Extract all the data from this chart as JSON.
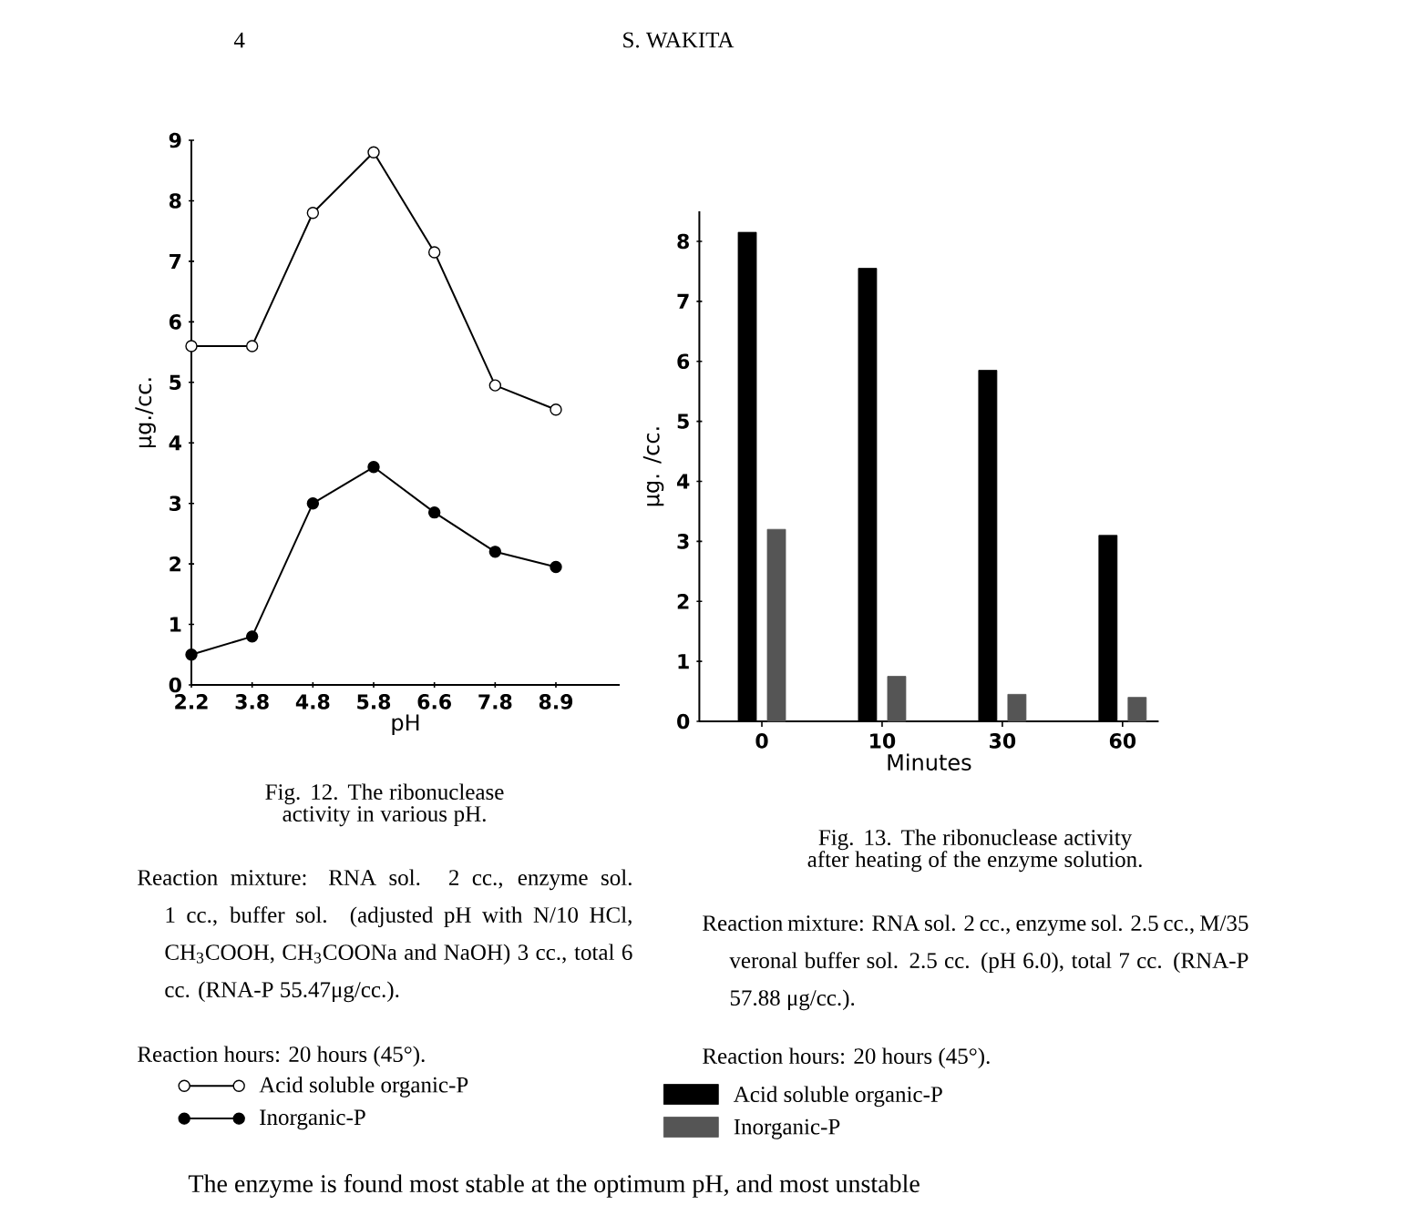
{
  "chart_data": [
    {
      "type": "line",
      "title": "Fig. 12.  The ribonuclease activity in various pH.",
      "xlabel": "pH",
      "ylabel": "μg./cc.",
      "categories": [
        "2.2",
        "3.8",
        "4.8",
        "5.8",
        "6.6",
        "7.8",
        "8.9"
      ],
      "series": [
        {
          "name": "Acid soluble organic-P",
          "color": "#000000",
          "values": [
            5.6,
            5.6,
            7.8,
            8.8,
            7.15,
            4.95,
            4.55
          ]
        },
        {
          "name": "Inorganic-P",
          "color": "#000000",
          "values": [
            0.5,
            0.8,
            3.0,
            3.6,
            2.85,
            2.2,
            1.95
          ]
        }
      ],
      "ylim": [
        0,
        9
      ],
      "yticks": [
        0,
        1,
        2,
        3,
        4,
        5,
        6,
        7,
        8,
        9
      ],
      "marker": "circle",
      "legend": "bottom",
      "annotations": [
        "4",
        "S. WAKITA",
        "Reaction mixture: RNA sol. 2 cc., enzyme sol. 1 cc., buffer sol. (adjusted pH with N/10 HCl, CH$_{3}$COOH, CH$_{3}$COONa and NaOH) 3 cc., total 6 cc. (RNA-P 55.47μg/cc.).",
        "Reaction hours: 20 hours (45°)."
      ]
    },
    {
      "type": "bar",
      "title": "Fig. 13.  The ribonuclease activity after heating of the enzyme solution.",
      "xlabel": "Minutes",
      "ylabel": "μg. /cc.",
      "categories": [
        "0",
        "10",
        "30",
        "60"
      ],
      "series": [
        {
          "name": "Acid soluble organic-P",
          "color": "#000000",
          "values": [
            8.15,
            7.55,
            5.85,
            3.1
          ]
        },
        {
          "name": "Inorganic-P",
          "color": "#555555",
          "values": [
            3.2,
            0.75,
            0.45,
            0.4
          ]
        }
      ],
      "ylim": [
        0,
        8.5
      ],
      "yticks": [
        0,
        1,
        2,
        3,
        4,
        5,
        6,
        7,
        8
      ],
      "legend": "bottom",
      "annotations": [
        "Reaction mixture: RNA sol. 2 cc., enzyme sol. 2.5 cc., M/35 veronal buffer sol. 2.5 cc. (pH 6.0), total 7 cc. (RNA-P 57.88 μg/cc.).",
        "Reaction hours: 20 hours (45°).",
        "The enzyme is found most stable at the optimum pH, and most unstable"
      ]
    }
  ]
}
